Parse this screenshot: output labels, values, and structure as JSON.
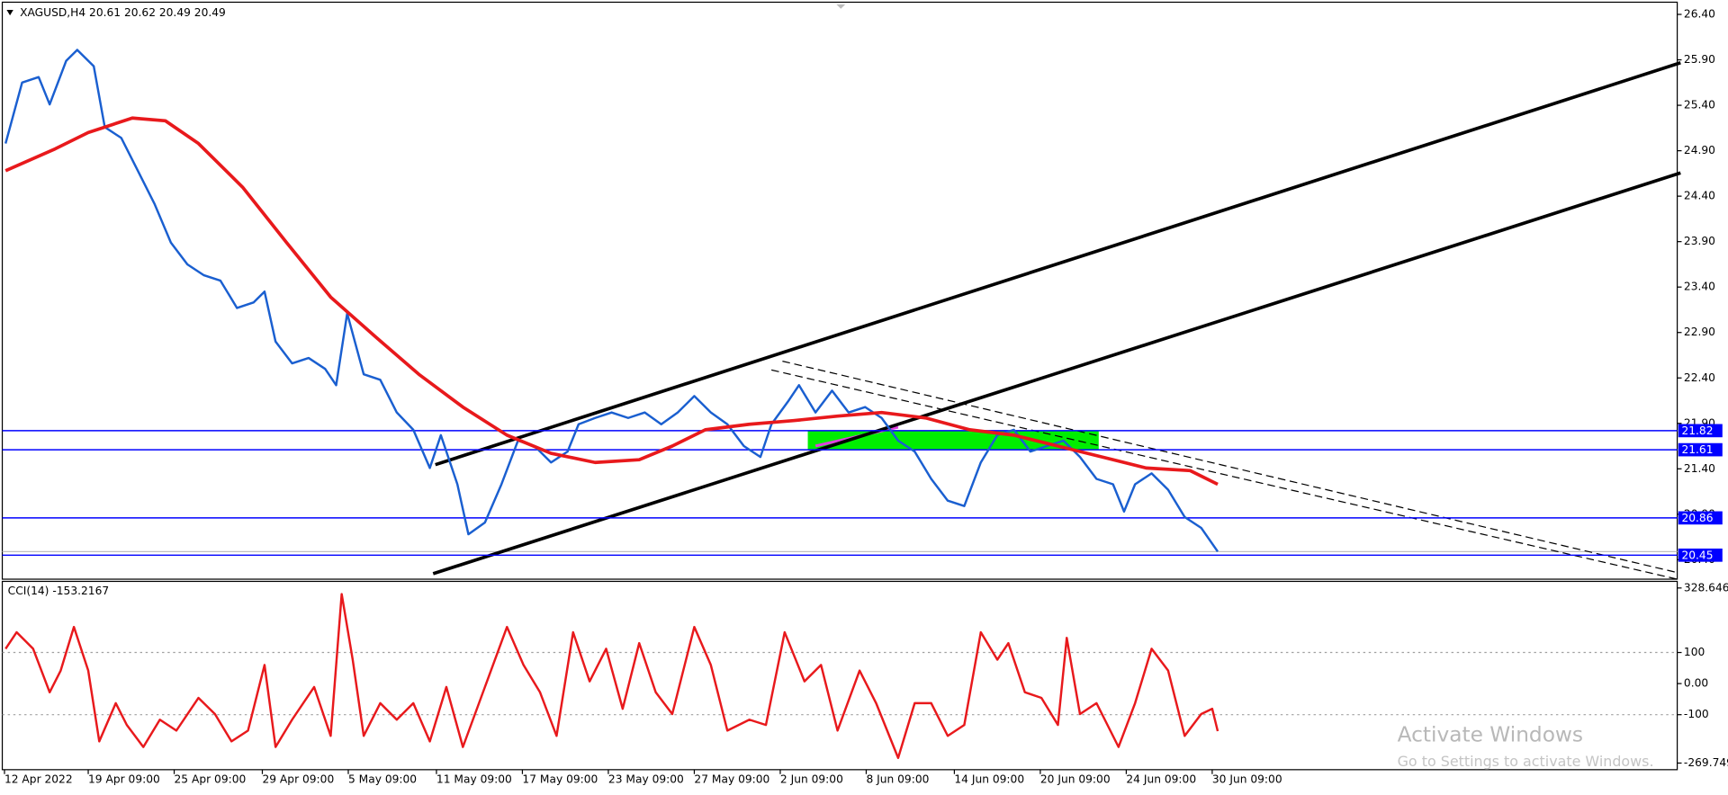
{
  "header": "XAGUSD,H4  20.61 20.62 20.49 20.49",
  "watermark": {
    "title": "Activate Windows",
    "subtitle": "Go to Settings to activate Windows."
  },
  "chart_data": [
    {
      "type": "line",
      "xlim": [
        0,
        304.4
      ],
      "ylim": [
        20.21,
        26.51
      ],
      "yticks": [
        {
          "value": 26.4,
          "label": "26.40"
        },
        {
          "value": 25.9,
          "label": "25.90"
        },
        {
          "value": 25.4,
          "label": "25.40"
        },
        {
          "value": 24.9,
          "label": "24.90"
        },
        {
          "value": 24.4,
          "label": "24.40"
        },
        {
          "value": 23.9,
          "label": "23.90"
        },
        {
          "value": 23.4,
          "label": "23.40"
        },
        {
          "value": 22.9,
          "label": "22.90"
        },
        {
          "value": 22.4,
          "label": "22.40"
        },
        {
          "value": 21.9,
          "label": "21.90"
        },
        {
          "value": 21.4,
          "label": "21.40"
        },
        {
          "value": 20.9,
          "label": "20.90"
        },
        {
          "value": 20.4,
          "label": "20.40"
        }
      ],
      "levels": [
        21.82,
        21.61,
        20.86,
        20.45
      ],
      "level_color": "#0000ff",
      "series": [
        {
          "color": "#1a5fd0",
          "x": [
            1,
            4,
            7,
            9,
            12,
            14,
            17,
            19,
            22,
            25,
            28,
            31,
            34,
            37,
            40,
            43,
            46,
            48,
            50,
            53,
            56,
            59,
            61,
            63,
            66,
            69,
            72,
            75,
            78,
            80,
            83,
            85,
            88,
            91,
            94,
            97,
            100,
            103,
            105,
            108,
            111,
            114,
            117,
            120,
            123,
            126,
            129,
            132,
            135,
            138,
            140,
            143,
            145,
            148,
            151,
            154,
            157,
            160,
            163,
            166,
            169,
            172,
            175,
            178,
            181,
            184,
            187,
            190,
            193,
            196,
            199,
            202,
            204,
            206,
            209,
            212,
            215,
            218,
            221
          ],
          "values": [
            24.98,
            25.65,
            25.71,
            25.41,
            25.89,
            26.01,
            25.83,
            25.16,
            25.04,
            24.68,
            24.32,
            23.89,
            23.65,
            23.53,
            23.47,
            23.17,
            23.23,
            23.35,
            22.8,
            22.56,
            22.62,
            22.5,
            22.32,
            23.11,
            22.44,
            22.38,
            22.02,
            21.83,
            21.41,
            21.77,
            21.23,
            20.68,
            20.81,
            21.23,
            21.71,
            21.65,
            21.47,
            21.59,
            21.89,
            21.96,
            22.02,
            21.96,
            22.02,
            21.89,
            22.02,
            22.2,
            22.02,
            21.89,
            21.65,
            21.53,
            21.89,
            22.14,
            22.32,
            22.02,
            22.26,
            22.02,
            22.08,
            21.96,
            21.71,
            21.59,
            21.29,
            21.05,
            20.99,
            21.47,
            21.77,
            21.83,
            21.59,
            21.65,
            21.71,
            21.53,
            21.29,
            21.23,
            20.93,
            21.23,
            21.35,
            21.17,
            20.87,
            20.75,
            20.49
          ]
        },
        {
          "color": "#e8191c",
          "x": [
            1,
            10,
            16,
            24,
            30,
            36,
            44,
            52,
            60,
            68,
            76,
            84,
            92,
            100,
            108,
            116,
            122,
            128,
            136,
            144,
            152,
            160,
            168,
            176,
            184,
            192,
            200,
            208,
            216,
            221
          ],
          "values": [
            24.68,
            24.92,
            25.1,
            25.26,
            25.23,
            24.98,
            24.5,
            23.89,
            23.29,
            22.86,
            22.44,
            22.08,
            21.77,
            21.57,
            21.47,
            21.5,
            21.65,
            21.83,
            21.89,
            21.93,
            21.98,
            22.02,
            21.96,
            21.83,
            21.77,
            21.65,
            21.53,
            21.41,
            21.38,
            21.23
          ]
        }
      ]
    },
    {
      "type": "line",
      "title": "CCI(14) -153.2167",
      "xlim": [
        0,
        304.4
      ],
      "ylim": [
        -269.749,
        328.646
      ],
      "yticks": [
        328.646,
        100,
        {
          "value": 0,
          "label": "0.00"
        },
        -100,
        -269.749
      ],
      "levels": [
        100,
        -100
      ],
      "level_color": "#a0a0a0",
      "xticks": [
        {
          "value": 0.8,
          "label": "12 Apr 2022"
        },
        {
          "value": 16,
          "label": "19 Apr 09:00"
        },
        {
          "value": 31.6,
          "label": "25 Apr 09:00"
        },
        {
          "value": 47.6,
          "label": "29 Apr 09:00"
        },
        {
          "value": 63.2,
          "label": "5 May 09:00"
        },
        {
          "value": 79.2,
          "label": "11 May 09:00"
        },
        {
          "value": 94.8,
          "label": "17 May 09:00"
        },
        {
          "value": 110.4,
          "label": "23 May 09:00"
        },
        {
          "value": 126,
          "label": "27 May 09:00"
        },
        {
          "value": 141.6,
          "label": "2 Jun 09:00"
        },
        {
          "value": 157.2,
          "label": "8 Jun 09:00"
        },
        {
          "value": 173.2,
          "label": "14 Jun 09:00"
        },
        {
          "value": 188.8,
          "label": "20 Jun 09:00"
        },
        {
          "value": 204.4,
          "label": "24 Jun 09:00"
        },
        {
          "value": 220,
          "label": "30 Jun 09:00"
        }
      ],
      "series": [
        {
          "color": "#e8191c",
          "x": [
            1,
            3,
            6,
            9,
            11,
            13.4,
            16,
            18,
            21,
            23,
            26,
            29,
            32,
            36,
            39,
            42,
            45,
            48,
            50,
            53,
            57,
            60,
            62,
            64,
            66,
            69,
            72,
            75,
            78,
            81,
            84,
            88,
            92,
            95,
            98,
            101,
            104,
            107,
            110,
            113,
            116,
            119,
            122,
            126,
            129,
            132,
            136,
            139,
            142.4,
            146,
            149,
            152,
            156,
            159,
            163,
            166,
            169,
            172,
            175,
            178,
            181,
            183,
            186,
            189,
            192,
            193.6,
            196,
            199,
            203,
            206,
            209,
            212,
            215,
            218,
            220,
            221
          ],
          "values": [
            112,
            165,
            112,
            -28,
            42,
            182,
            42,
            -186,
            -63,
            -133,
            -204,
            -116,
            -151,
            -46,
            -98,
            -186,
            -151,
            60,
            -204,
            -116,
            -11,
            -168,
            288,
            77,
            -168,
            -63,
            -116,
            -63,
            -186,
            -11,
            -204,
            -11,
            182,
            60,
            -28,
            -168,
            165,
            7,
            112,
            -81,
            130,
            -28,
            -98,
            182,
            60,
            -151,
            -116,
            -133,
            165,
            7,
            60,
            -151,
            42,
            -63,
            -239,
            -63,
            -63,
            -168,
            -133,
            165,
            77,
            130,
            -28,
            -46,
            -133,
            147,
            -98,
            -63,
            -204,
            -63,
            112,
            42,
            -168,
            -98,
            -81,
            -153
          ]
        }
      ]
    }
  ]
}
